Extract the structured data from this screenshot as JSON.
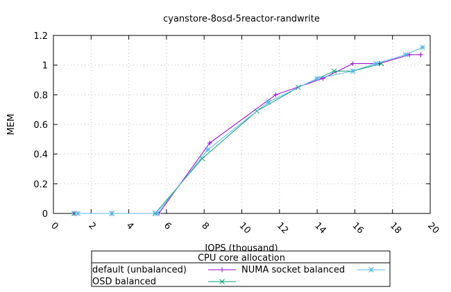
{
  "chart_data": {
    "type": "line",
    "title": "cyanstore-8osd-5reactor-randwrite",
    "xlabel": "IOPS (thousand)",
    "ylabel": "MEM",
    "xlim": [
      0,
      20
    ],
    "ylim": [
      0,
      1.2
    ],
    "xticks": [
      "0",
      "2",
      "4",
      "6",
      "8",
      "10",
      "12",
      "14",
      "16",
      "18",
      "20"
    ],
    "yticks": [
      "0",
      "0.2",
      "0.4",
      "0.6",
      "0.8",
      "1",
      "1.2"
    ],
    "grid": true,
    "legend": {
      "title": "CPU core allocation",
      "placement": "bottom"
    },
    "series": [
      {
        "name": "default (unbalanced)",
        "color": "#9400d3",
        "marker": "plus",
        "x": [
          1.1,
          3.1,
          5.6,
          8.3,
          11.8,
          14.3,
          15.9,
          17.3,
          18.9,
          19.5
        ],
        "y": [
          0,
          0,
          0,
          0.475,
          0.8,
          0.91,
          1.01,
          1.01,
          1.07,
          1.07
        ]
      },
      {
        "name": "OSD balanced",
        "color": "#009e73",
        "marker": "cross",
        "x": [
          1.1,
          3.1,
          5.4,
          7.9,
          10.8,
          13.0,
          14.9,
          15.9,
          17.4
        ],
        "y": [
          0,
          0,
          0,
          0.37,
          0.69,
          0.85,
          0.96,
          0.96,
          1.01
        ]
      },
      {
        "name": "NUMA socket balanced",
        "color": "#56b4e9",
        "marker": "star",
        "x": [
          1.3,
          3.1,
          5.5,
          8.2,
          11.4,
          14.0,
          15.9,
          17.1,
          18.7,
          19.6
        ],
        "y": [
          0,
          0,
          0,
          0.43,
          0.75,
          0.91,
          0.96,
          1.01,
          1.07,
          1.12
        ]
      }
    ]
  }
}
